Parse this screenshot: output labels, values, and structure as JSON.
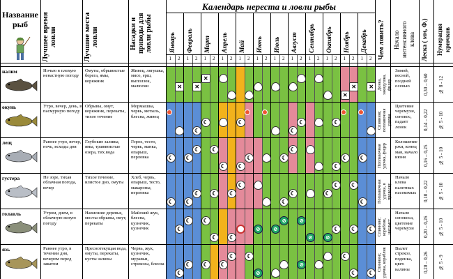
{
  "header": {
    "col_name": "Название рыб",
    "col_time": "Лучшее время ловли",
    "col_place": "Лучшие места ловли",
    "col_bait": "Насадки и приводы для ловли рыбы",
    "calendar_title": "Календарь нереста и ловли рыбы",
    "col_what": "Чем ловить?",
    "col_start": "Начало интенсивного клева",
    "col_line": "Леска ( мм, Ф.)",
    "col_hook": "Нумерация крючков"
  },
  "months": [
    "Январь",
    "Февраль",
    "Март",
    "Апрель",
    "Май",
    "Июнь",
    "Июль",
    "Август",
    "Сентябрь",
    "Октябрь",
    "Ноябрь",
    "Декабрь"
  ],
  "halves": [
    "1",
    "2"
  ],
  "fish": [
    {
      "name": "налим",
      "time": "Ночью в плохую ненастную погоду",
      "place": "Омуты, обрывистые берега, ямы, коряжник",
      "bait": "Живец, лягушка, мясо, ерш, выползок, малюски",
      "what": "Донка, закидушка, фидер",
      "start": "Зимой, весной, поздней осенью",
      "line": "0,30 – 0,60",
      "hook": "№ 8 - 12"
    },
    {
      "name": "окунь",
      "time": "Утро, вечер, день, в пасмурную погоду",
      "place": "Обрывы, омут, коряжник, перекаты, тихое течение",
      "bait": "Мормышка, червь, мотыль, блесна, живец",
      "what": "Спиннинг, поплавочная удочка",
      "start": "Цветение черемухи, сенокос, падает ленок",
      "line": "0,14 – 0,22",
      "hook": "№ 5 - 10"
    },
    {
      "name": "лещ",
      "time": "Раннее утро, вечер, ночь, всходы дня",
      "place": "Глубокие заливы, ямы, травянистые озера, тих.вода",
      "bait": "Горох, тесто, червь, манка, опарыш, перловка",
      "what": "Поплавочная удочка, фидер",
      "start": "Колошение ржи, конец мая, начало июня",
      "line": "0,16 – 0,25",
      "hook": "№ 5 - 10"
    },
    {
      "name": "густера",
      "time": "Не зоре, тихая облачная погода, вечер",
      "place": "Тихое течение, илистое дно, омуты",
      "bait": "Хлеб, червь, опарыш, тесто, макароны, перловка",
      "what": "Поплавочная удочка, в проводку",
      "start": "Начало клева налетных насекомых",
      "line": "0,10 – 0,22",
      "hook": "№ 5 - 10"
    },
    {
      "name": "голавль",
      "time": "Утром, днем, в облачную ясную погоду",
      "place": "Нависшие деревья, мосты обрывы, омут, перекаты",
      "bait": "Майский жук, блесна, кузнечик, кузнечик",
      "what": "Спиннинг, кораблик, нахлыст",
      "start": "Начало сенокоса, цветение черемухи",
      "line": "0,20 – 0,26",
      "hook": "№ 5 - 10"
    },
    {
      "name": "язь",
      "time": "Раннее утро, в течении дня, вечером перед закатом",
      "place": "Преснотекущая вода, омуты, перекаты, кусты заливы",
      "bait": "Червь, жук, кузнечик, муравьи, стрекозы, блесна",
      "what": "Спиннинг, удочка, кораблик",
      "start": "Вылет стрекоз, поденка, цвет. калины",
      "line": "0,20 – 0,26",
      "hook": "№ 5 - 9"
    }
  ],
  "colors": {
    "blue": "#5b8ed6",
    "green": "#7ac142",
    "pink": "#e48a9a",
    "yellow": "#f2b21c",
    "light": "#cfd9f0"
  }
}
